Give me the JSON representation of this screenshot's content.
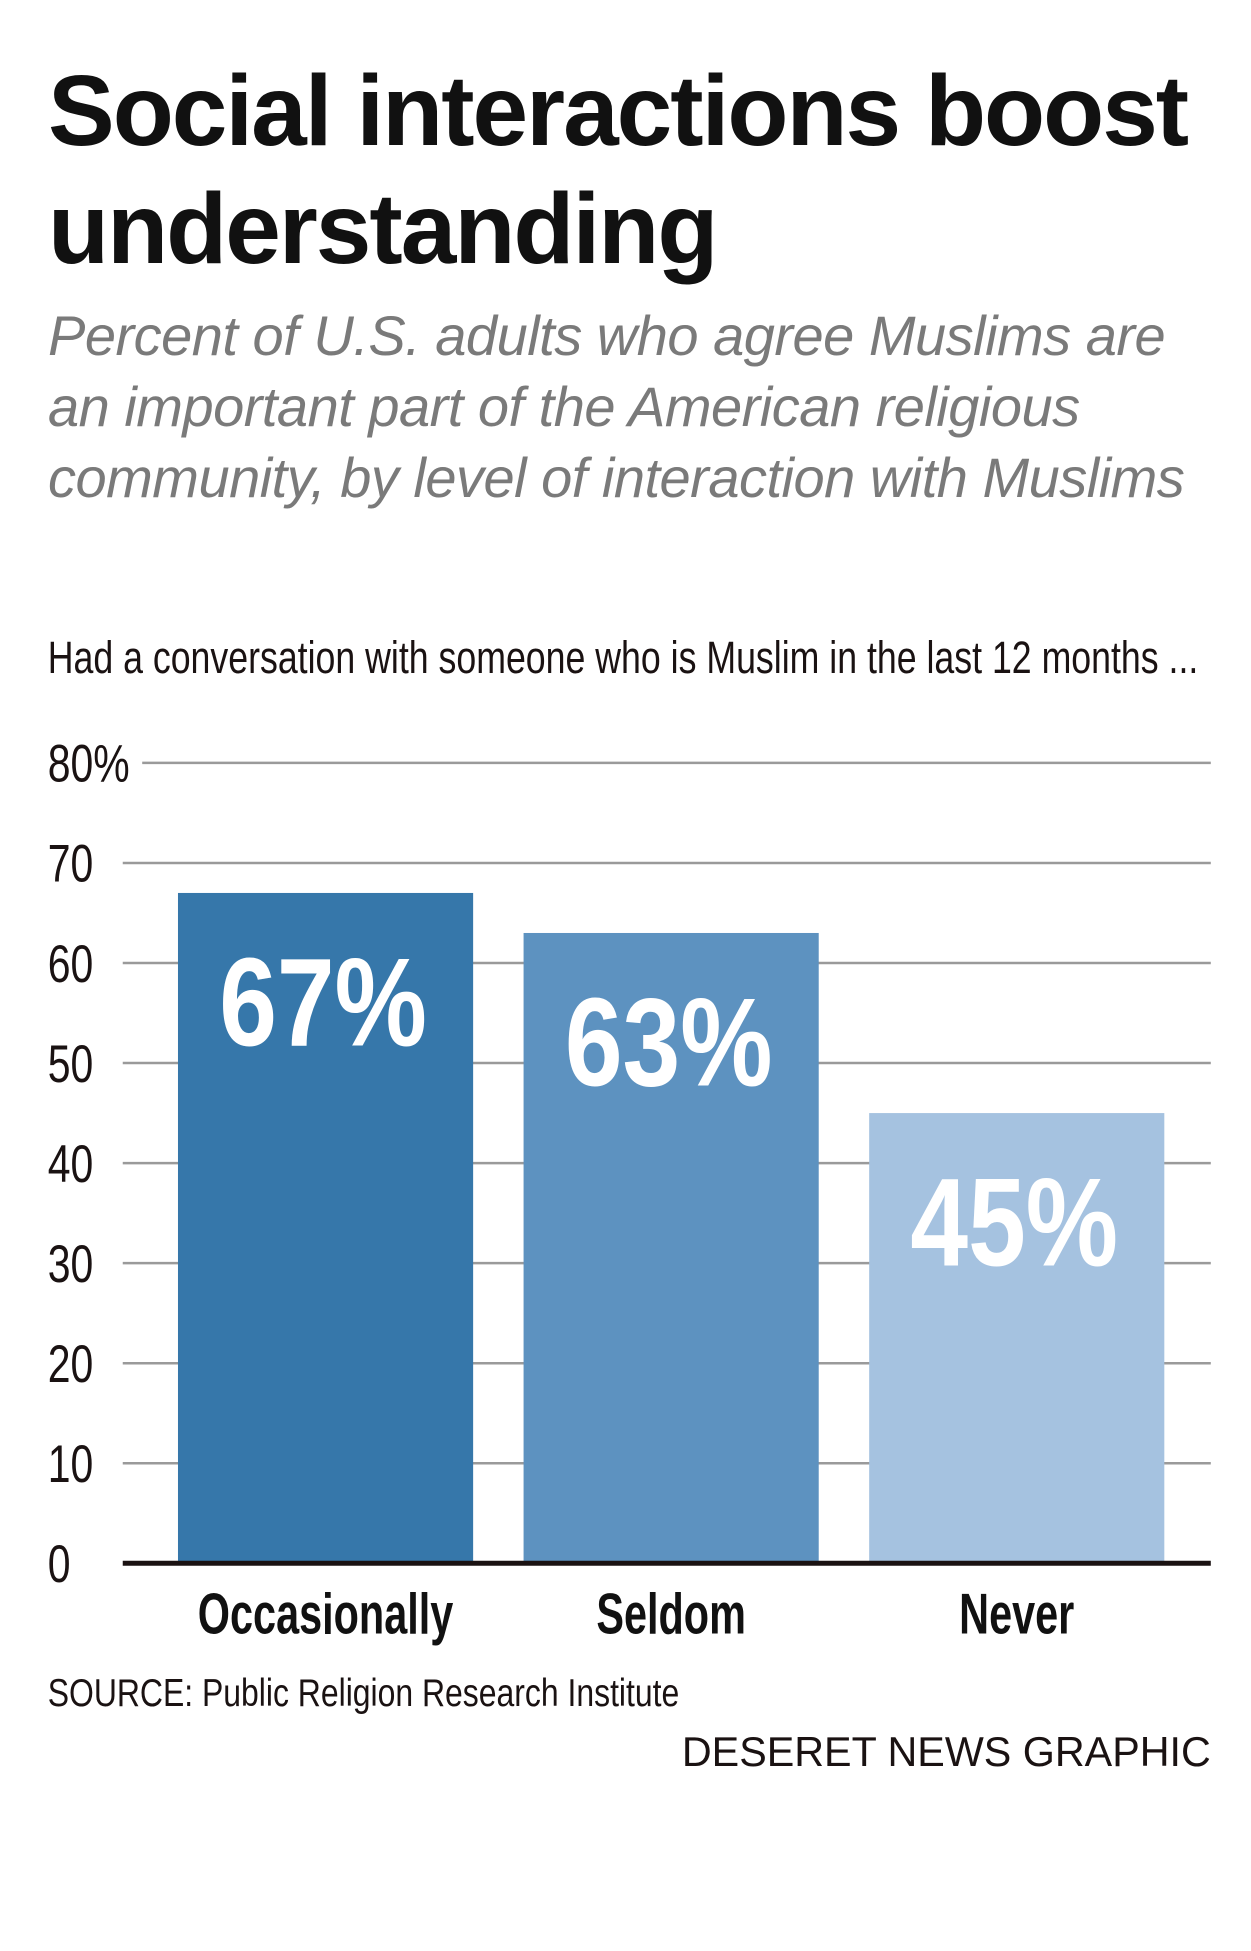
{
  "chart_data": {
    "type": "bar",
    "title": "Social interactions boost understanding",
    "subtitle": "Percent of U.S. adults who agree Muslims are an important part of the American religious community, by level of interaction with Muslims",
    "x_label": "Had a conversation with someone who is Muslim in the last 12 months ...",
    "categories": [
      "Occasionally",
      "Seldom",
      "Never"
    ],
    "values": [
      67,
      63,
      45
    ],
    "value_labels": [
      "67%",
      "63%",
      "45%"
    ],
    "colors": [
      "#3677aa",
      "#5d92c0",
      "#a5c2e0"
    ],
    "ylim": [
      0,
      80
    ],
    "yticks": [
      0,
      10,
      20,
      30,
      40,
      50,
      60,
      70,
      {
        "value": 80,
        "label": "80%"
      }
    ],
    "grid": true,
    "source": "SOURCE: Public Religion Research Institute",
    "credit": "DESERET NEWS GRAPHIC"
  }
}
